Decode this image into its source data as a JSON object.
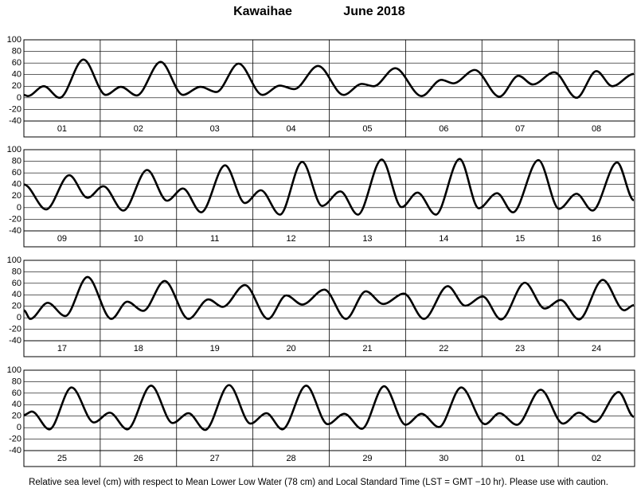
{
  "title": "Kawaihae",
  "subtitle": "June   2018",
  "note": "Relative sea level (cm) with respect to Mean Lower Low Water (78 cm) and Local Standard Time (LST = GMT −10 hr). Please use with caution.",
  "chart_data": [
    {
      "type": "line",
      "categories": [
        "01",
        "02",
        "03",
        "04",
        "05",
        "06",
        "07",
        "08"
      ],
      "x": [
        0,
        1.25,
        6.25,
        11.25,
        18.75,
        25.75,
        30.5,
        35.5,
        43,
        50,
        55.5,
        60.5,
        67.5,
        75,
        80.5,
        85,
        92.5,
        100.5,
        106.25,
        110,
        116.75,
        125,
        131.25,
        135,
        141.75,
        149.5,
        155.5,
        160,
        166.75,
        173.75,
        180,
        185,
        191.75
      ],
      "series": [
        {
          "color": "#000000",
          "values": [
            5,
            3,
            20,
            0,
            66,
            5,
            19,
            4,
            62,
            5,
            19,
            10,
            59,
            5,
            21,
            15,
            55,
            5,
            24,
            20,
            51,
            3,
            31,
            25,
            48,
            2,
            38,
            23,
            44,
            0,
            46,
            20,
            41
          ]
        }
      ],
      "xlim": [
        0,
        192
      ],
      "ylim": [
        -40,
        100
      ],
      "yticks": [
        -40,
        -20,
        0,
        20,
        40,
        60,
        80,
        100
      ],
      "grid": true
    },
    {
      "type": "line",
      "categories": [
        "09",
        "10",
        "11",
        "12",
        "13",
        "14",
        "15",
        "16"
      ],
      "x": [
        0,
        7,
        14.25,
        20,
        25,
        31.25,
        38.75,
        45,
        50,
        55.75,
        63.25,
        69.5,
        74.5,
        80.5,
        87.5,
        93.75,
        99.5,
        105,
        112.5,
        118.75,
        123.75,
        129.5,
        137,
        143,
        148.75,
        153.75,
        161.75,
        168.25,
        173.75,
        178.75,
        186.5,
        191.75
      ],
      "series": [
        {
          "color": "#000000",
          "values": [
            40,
            -3,
            56,
            17,
            37,
            -5,
            65,
            12,
            33,
            -8,
            73,
            8,
            30,
            -12,
            79,
            3,
            28,
            -12,
            83,
            1,
            26,
            -12,
            84,
            -1,
            25,
            -8,
            82,
            -2,
            24,
            -5,
            78,
            13
          ]
        }
      ],
      "xlim": [
        0,
        192
      ],
      "ylim": [
        -40,
        100
      ],
      "yticks": [
        -40,
        -20,
        0,
        20,
        40,
        60,
        80,
        100
      ],
      "grid": true
    },
    {
      "type": "line",
      "categories": [
        "17",
        "18",
        "19",
        "20",
        "21",
        "22",
        "23",
        "24"
      ],
      "x": [
        0,
        2,
        7.5,
        13,
        20,
        27.5,
        32.5,
        37.5,
        44.25,
        51.75,
        58,
        62.5,
        69.5,
        76.75,
        82.5,
        87.5,
        94.5,
        101.25,
        107.5,
        113,
        119.5,
        125.75,
        133.25,
        138.75,
        144.25,
        150,
        157.5,
        163.75,
        168.75,
        174.5,
        182,
        188.75,
        191.75
      ],
      "series": [
        {
          "color": "#000000",
          "values": [
            13,
            -2,
            26,
            3,
            71,
            -2,
            28,
            12,
            64,
            -2,
            32,
            19,
            57,
            -2,
            39,
            23,
            49,
            -2,
            46,
            24,
            42,
            -2,
            55,
            21,
            37,
            -3,
            61,
            16,
            31,
            -3,
            66,
            13,
            22
          ]
        }
      ],
      "xlim": [
        0,
        192
      ],
      "ylim": [
        -40,
        100
      ],
      "yticks": [
        -40,
        -20,
        0,
        20,
        40,
        60,
        80,
        100
      ],
      "grid": true
    },
    {
      "type": "line",
      "categories": [
        "25",
        "26",
        "27",
        "28",
        "29",
        "30",
        "01",
        "02"
      ],
      "x": [
        0,
        2.5,
        8,
        15,
        22,
        27,
        32.5,
        40,
        46.75,
        51.75,
        57,
        64.5,
        71.25,
        76.25,
        81.25,
        88.75,
        95.5,
        100.75,
        106.25,
        113.25,
        120,
        125,
        130.5,
        137.5,
        145,
        149.5,
        155,
        162.5,
        169.5,
        174.5,
        179.5,
        187,
        191.75
      ],
      "series": [
        {
          "color": "#000000",
          "values": [
            22,
            28,
            -3,
            70,
            9,
            26,
            -3,
            73,
            8,
            25,
            -4,
            74,
            7,
            25,
            -3,
            73,
            6,
            24,
            -2,
            72,
            5,
            24,
            1,
            70,
            6,
            25,
            5,
            66,
            7,
            26,
            10,
            62,
            19
          ]
        }
      ],
      "xlim": [
        0,
        192
      ],
      "ylim": [
        -40,
        100
      ],
      "yticks": [
        -40,
        -20,
        0,
        20,
        40,
        60,
        80,
        100
      ],
      "grid": true
    }
  ]
}
